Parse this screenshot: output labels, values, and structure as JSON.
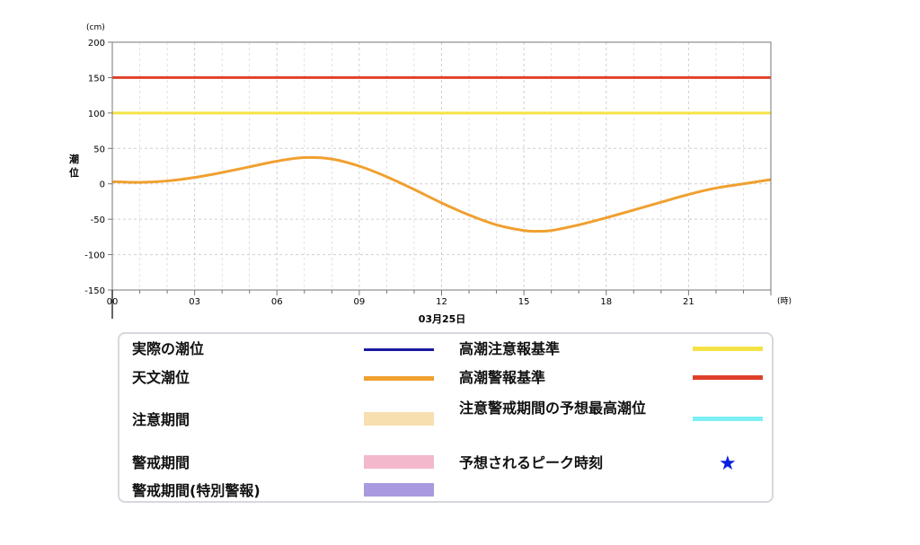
{
  "chart_data": {
    "type": "line",
    "unit_label": "(cm)",
    "ylabel": "潮位",
    "x_unit_label": "(時)",
    "date_label": "03月25日",
    "ylim": [
      -150,
      200
    ],
    "yticks": [
      200,
      150,
      100,
      50,
      0,
      -50,
      -100,
      -150
    ],
    "xlim": [
      0,
      24
    ],
    "xticks": [
      {
        "value": 0,
        "label": "00"
      },
      {
        "value": 3,
        "label": "03"
      },
      {
        "value": 6,
        "label": "06"
      },
      {
        "value": 9,
        "label": "09"
      },
      {
        "value": 12,
        "label": "12"
      },
      {
        "value": 15,
        "label": "15"
      },
      {
        "value": 18,
        "label": "18"
      },
      {
        "value": 21,
        "label": "21"
      }
    ],
    "grid": true,
    "series": [
      {
        "name": "天文潮位",
        "color": "#f0a030",
        "x": [
          0,
          1,
          2,
          3,
          4,
          5,
          6,
          7,
          8,
          9,
          10,
          11,
          12,
          13,
          14,
          15,
          15.5,
          16,
          17,
          18,
          19,
          20,
          21,
          22,
          23,
          24
        ],
        "y": [
          3,
          2,
          4,
          9,
          16,
          24,
          32,
          37,
          35,
          25,
          10,
          -8,
          -27,
          -44,
          -58,
          -66,
          -67,
          -66,
          -58,
          -48,
          -37,
          -26,
          -15,
          -6,
          0,
          6
        ]
      }
    ],
    "reference_lines": [
      {
        "name": "高潮注意報基準",
        "value": 100,
        "color": "#f4e345"
      },
      {
        "name": "高潮警報基準",
        "value": 150,
        "color": "#e0402a"
      }
    ]
  },
  "legend": {
    "items": [
      {
        "label": "実際の潮位",
        "color": "#1a1aa0"
      },
      {
        "label": "天文潮位",
        "color": "#f0a030"
      },
      {
        "label": "注意期間",
        "color": "#f7dfb0"
      },
      {
        "label": "警戒期間",
        "color": "#f3b8cc"
      },
      {
        "label": "警戒期間(特別警報)",
        "color": "#a99ae0"
      },
      {
        "label": "高潮注意報基準",
        "color": "#f4e345"
      },
      {
        "label": "高潮警報基準",
        "color": "#e0402a"
      },
      {
        "label": "注意警戒期間の予想最高潮位",
        "color": "#7cf0f4"
      },
      {
        "label": "予想されるピーク時刻",
        "color": "#0a1ee0",
        "glyph": "★"
      }
    ]
  }
}
